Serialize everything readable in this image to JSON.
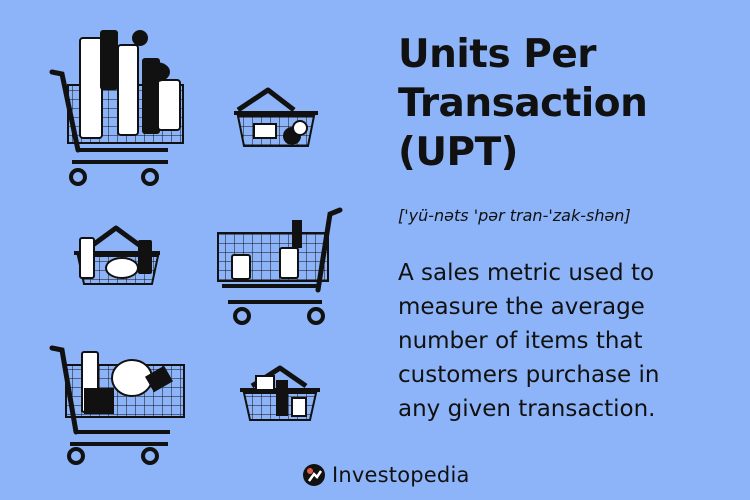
{
  "title_lines": [
    "Units Per",
    "Transaction",
    "(UPT)"
  ],
  "pronunciation": "['yü-nəts 'pər tran-'zak-shən]",
  "description_lines": [
    "A sales metric used to",
    "measure the average",
    "number of items that",
    "customers purchase in",
    "any given transaction."
  ],
  "brand": {
    "name": "Investopedia",
    "logo_icon": "investopedia-logo-icon"
  },
  "colors": {
    "background": "#8db4f8",
    "ink": "#111111",
    "logo_dot": "#e05a4b"
  },
  "illustrations": [
    "shopping-cart-icon",
    "shopping-basket-icon",
    "shopping-basket-icon",
    "shopping-cart-icon",
    "shopping-cart-icon",
    "shopping-basket-icon"
  ]
}
